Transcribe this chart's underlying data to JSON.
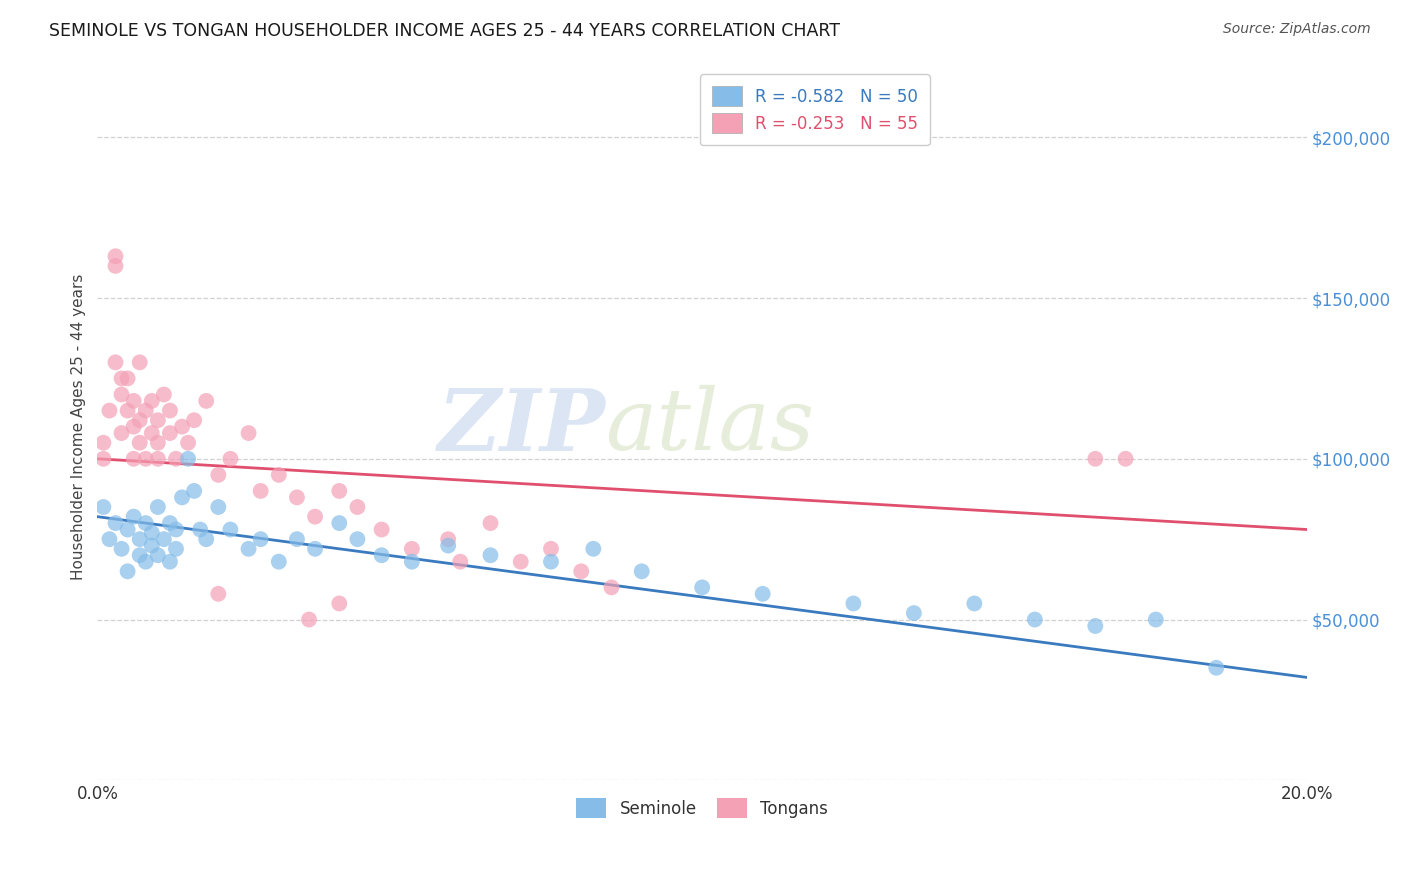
{
  "title": "SEMINOLE VS TONGAN HOUSEHOLDER INCOME AGES 25 - 44 YEARS CORRELATION CHART",
  "source": "Source: ZipAtlas.com",
  "ylabel": "Householder Income Ages 25 - 44 years",
  "xlim": [
    0.0,
    0.2
  ],
  "ylim": [
    0,
    220000
  ],
  "yticks": [
    0,
    50000,
    100000,
    150000,
    200000
  ],
  "ytick_labels": [
    "",
    "$50,000",
    "$100,000",
    "$150,000",
    "$200,000"
  ],
  "legend_seminole": "R = -0.582   N = 50",
  "legend_tongan": "R = -0.253   N = 55",
  "seminole_color": "#85bce8",
  "tongan_color": "#f4a0b5",
  "seminole_line_color": "#3a7abf",
  "tongan_line_color": "#e0506e",
  "ytick_color": "#4a90d9",
  "watermark_zip": "ZIP",
  "watermark_atlas": "atlas",
  "seminole_x": [
    0.001,
    0.002,
    0.003,
    0.004,
    0.005,
    0.005,
    0.006,
    0.007,
    0.007,
    0.008,
    0.008,
    0.009,
    0.009,
    0.01,
    0.01,
    0.011,
    0.012,
    0.012,
    0.013,
    0.013,
    0.014,
    0.015,
    0.016,
    0.017,
    0.018,
    0.02,
    0.022,
    0.025,
    0.027,
    0.03,
    0.033,
    0.036,
    0.04,
    0.043,
    0.047,
    0.052,
    0.058,
    0.065,
    0.075,
    0.082,
    0.09,
    0.1,
    0.11,
    0.125,
    0.135,
    0.145,
    0.155,
    0.165,
    0.175,
    0.185
  ],
  "seminole_y": [
    85000,
    75000,
    80000,
    72000,
    78000,
    65000,
    82000,
    70000,
    75000,
    68000,
    80000,
    73000,
    77000,
    85000,
    70000,
    75000,
    80000,
    68000,
    78000,
    72000,
    88000,
    100000,
    90000,
    78000,
    75000,
    85000,
    78000,
    72000,
    75000,
    68000,
    75000,
    72000,
    80000,
    75000,
    70000,
    68000,
    73000,
    70000,
    68000,
    72000,
    65000,
    60000,
    58000,
    55000,
    52000,
    55000,
    50000,
    48000,
    50000,
    35000
  ],
  "tongan_x": [
    0.001,
    0.001,
    0.002,
    0.003,
    0.003,
    0.004,
    0.004,
    0.005,
    0.005,
    0.006,
    0.006,
    0.006,
    0.007,
    0.007,
    0.007,
    0.008,
    0.008,
    0.009,
    0.009,
    0.01,
    0.01,
    0.01,
    0.011,
    0.012,
    0.012,
    0.013,
    0.014,
    0.015,
    0.016,
    0.018,
    0.02,
    0.022,
    0.025,
    0.027,
    0.03,
    0.033,
    0.036,
    0.04,
    0.043,
    0.047,
    0.052,
    0.058,
    0.065,
    0.07,
    0.075,
    0.08,
    0.085,
    0.06,
    0.04,
    0.035,
    0.003,
    0.004,
    0.165,
    0.17,
    0.02
  ],
  "tongan_y": [
    100000,
    105000,
    115000,
    160000,
    163000,
    108000,
    120000,
    115000,
    125000,
    100000,
    118000,
    110000,
    130000,
    112000,
    105000,
    115000,
    100000,
    108000,
    118000,
    112000,
    100000,
    105000,
    120000,
    108000,
    115000,
    100000,
    110000,
    105000,
    112000,
    118000,
    95000,
    100000,
    108000,
    90000,
    95000,
    88000,
    82000,
    90000,
    85000,
    78000,
    72000,
    75000,
    80000,
    68000,
    72000,
    65000,
    60000,
    68000,
    55000,
    50000,
    130000,
    125000,
    100000,
    100000,
    58000
  ]
}
